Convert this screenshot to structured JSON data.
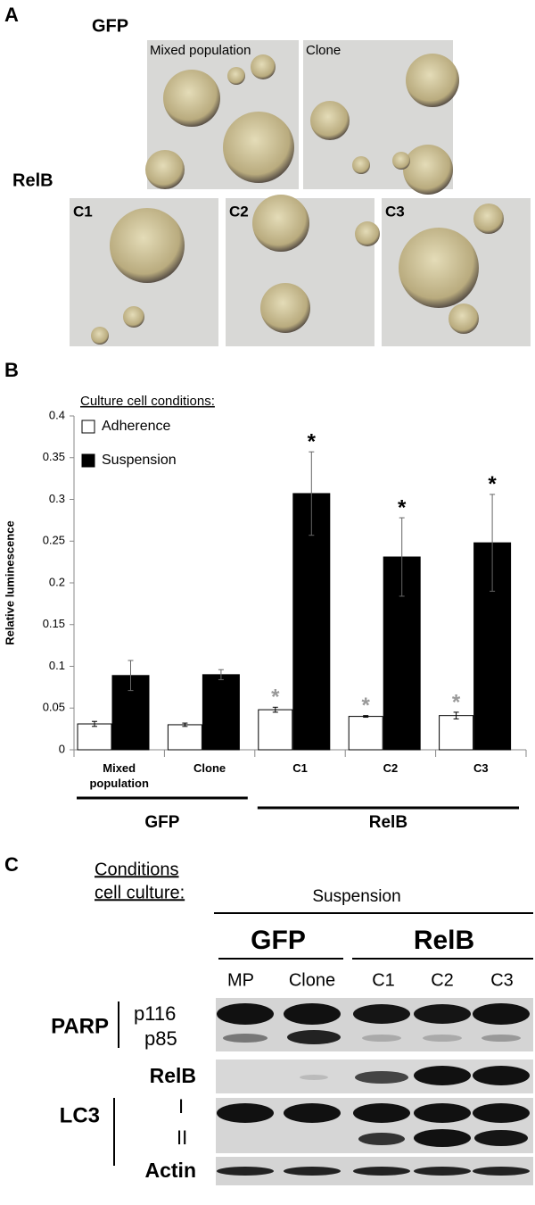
{
  "panel_a": {
    "letter": "A",
    "gfp_label": "GFP",
    "relb_label": "RelB",
    "gfp_images": [
      "Mixed population",
      "Clone"
    ],
    "relb_images": [
      "C1",
      "C2",
      "C3"
    ]
  },
  "chart_data": {
    "type": "bar",
    "letter": "B",
    "ylabel": "Relative luminescence",
    "legend_title": "Culture cell conditions:",
    "categories": [
      "Mixed population",
      "Clone",
      "C1",
      "C2",
      "C3"
    ],
    "groups": [
      {
        "label": "GFP",
        "size": 2
      },
      {
        "label": "RelB",
        "size": 3
      }
    ],
    "series": [
      {
        "name": "Adherence",
        "color": "#ffffff",
        "marker_color": "#999999",
        "values": [
          0.031,
          0.03,
          0.048,
          0.04,
          0.041
        ],
        "errors": [
          0.003,
          0.002,
          0.003,
          0.001,
          0.004
        ],
        "markers": [
          null,
          null,
          "*",
          "*",
          "*"
        ]
      },
      {
        "name": "Suspension",
        "color": "#000000",
        "marker_color": "#000000",
        "values": [
          0.089,
          0.09,
          0.307,
          0.231,
          0.248
        ],
        "errors": [
          0.018,
          0.006,
          0.05,
          0.047,
          0.058
        ],
        "markers": [
          null,
          null,
          "*",
          "*",
          "*"
        ]
      }
    ],
    "ylim": [
      0,
      0.4
    ],
    "yticks": [
      0,
      0.05,
      0.1,
      0.15,
      0.2,
      0.25,
      0.3,
      0.35,
      0.4
    ]
  },
  "panel_c": {
    "letter": "C",
    "title_lines": [
      "Conditions",
      "cell culture:"
    ],
    "condition": "Suspension",
    "gfp_label": "GFP",
    "relb_label": "RelB",
    "lanes": [
      "MP",
      "Clone",
      "C1",
      "C2",
      "C3"
    ],
    "parp": {
      "name": "PARP",
      "bands": [
        "p116",
        "p85"
      ]
    },
    "relb_row": "RelB",
    "lc3": {
      "name": "LC3",
      "bands": [
        "I",
        "II"
      ]
    },
    "actin": "Actin"
  }
}
